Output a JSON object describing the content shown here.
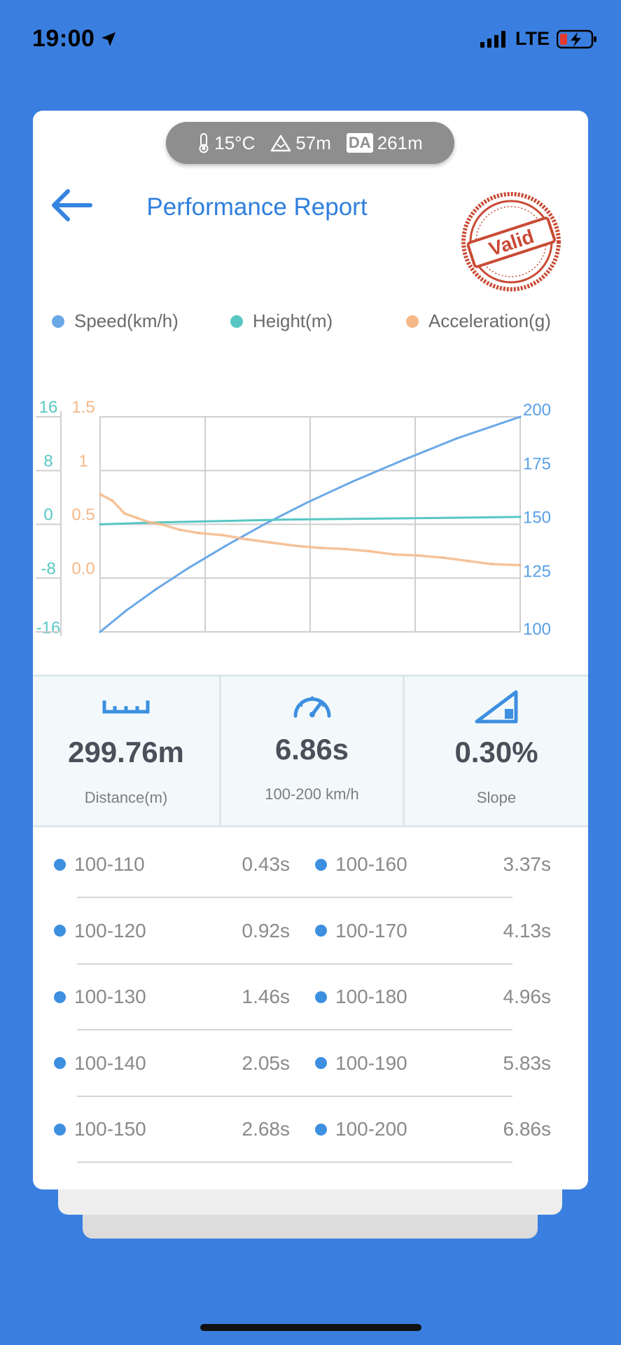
{
  "status_bar": {
    "time": "19:00",
    "network": "LTE"
  },
  "environment": {
    "temperature": "15°C",
    "altitude": "57m",
    "da_label": "DA",
    "density_altitude": "261m"
  },
  "header": {
    "title": "Performance Report",
    "stamp_text": "Valid"
  },
  "legend": [
    {
      "label": "Speed(km/h)",
      "color": "#6aa8e8"
    },
    {
      "label": "Height(m)",
      "color": "#58c7c4"
    },
    {
      "label": "Acceleration(g)",
      "color": "#f5b888"
    }
  ],
  "chart_data": {
    "type": "line",
    "axes": {
      "height_ticks": [
        "16",
        "8",
        "0",
        "-8",
        "-16"
      ],
      "acceleration_ticks": [
        "1.5",
        "1",
        "0.5",
        "0.0"
      ],
      "speed_ticks": [
        "200",
        "175",
        "150",
        "125",
        "100"
      ],
      "speed_range": [
        100,
        200
      ],
      "height_range": [
        -16,
        16
      ],
      "acceleration_range": [
        -0.5,
        1.5
      ]
    },
    "series": [
      {
        "name": "Speed(km/h)",
        "color": "#6aa8e8",
        "x": [
          0,
          0.43,
          0.92,
          1.46,
          2.05,
          2.68,
          3.37,
          4.13,
          4.96,
          5.83,
          6.86
        ],
        "y": [
          100,
          110,
          120,
          130,
          140,
          150,
          160,
          170,
          180,
          190,
          200
        ]
      },
      {
        "name": "Height(m)",
        "color": "#58c7c4",
        "x": [
          0,
          1,
          2,
          3,
          4,
          5,
          6,
          6.86
        ],
        "y": [
          0,
          0.3,
          0.5,
          0.7,
          0.8,
          0.9,
          1.0,
          1.1
        ]
      },
      {
        "name": "Acceleration(g)",
        "color": "#f5b888",
        "x": [
          0,
          0.2,
          0.4,
          0.6,
          0.8,
          1.0,
          1.3,
          1.6,
          2.0,
          2.4,
          2.8,
          3.2,
          3.6,
          4.0,
          4.4,
          4.8,
          5.2,
          5.6,
          6.0,
          6.4,
          6.86
        ],
        "y": [
          0.78,
          0.72,
          0.6,
          0.56,
          0.52,
          0.5,
          0.45,
          0.42,
          0.4,
          0.36,
          0.33,
          0.3,
          0.28,
          0.27,
          0.25,
          0.22,
          0.21,
          0.19,
          0.16,
          0.13,
          0.12
        ]
      }
    ],
    "grid": true,
    "legend_position": "top"
  },
  "stats": [
    {
      "value": "299.76m",
      "label": "Distance(m)"
    },
    {
      "value": "6.86s",
      "label": "100-200 km/h"
    },
    {
      "value": "0.30%",
      "label": "Slope"
    }
  ],
  "splits": [
    {
      "left_range": "100-110",
      "left_time": "0.43s",
      "right_range": "100-160",
      "right_time": "3.37s"
    },
    {
      "left_range": "100-120",
      "left_time": "0.92s",
      "right_range": "100-170",
      "right_time": "4.13s"
    },
    {
      "left_range": "100-130",
      "left_time": "1.46s",
      "right_range": "100-180",
      "right_time": "4.96s"
    },
    {
      "left_range": "100-140",
      "left_time": "2.05s",
      "right_range": "100-190",
      "right_time": "5.83s"
    },
    {
      "left_range": "100-150",
      "left_time": "2.68s",
      "right_range": "100-200",
      "right_time": "6.86s"
    }
  ]
}
